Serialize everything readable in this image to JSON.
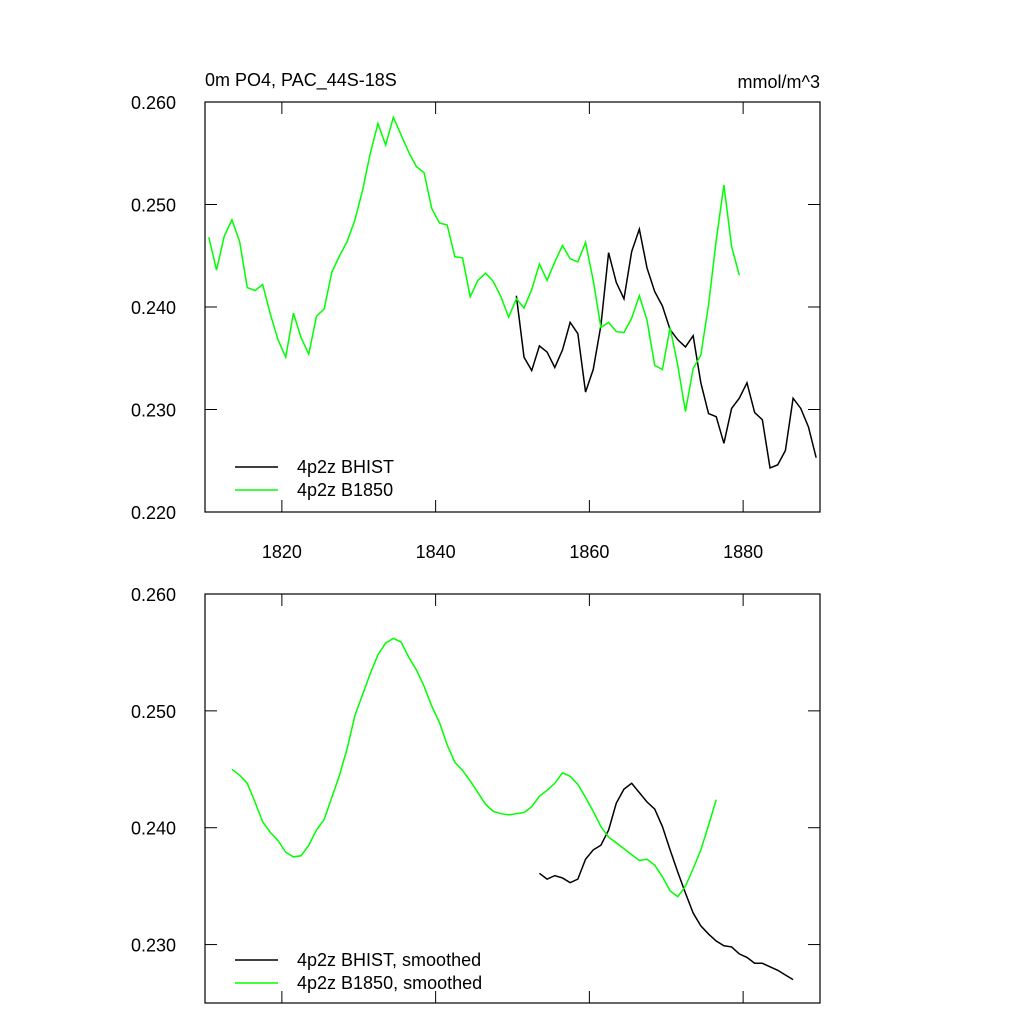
{
  "chart_data": [
    {
      "type": "line",
      "title": "0m PO4, PAC_44S-18S",
      "units": "mmol/m^3",
      "x": [
        1810.5,
        1811.5,
        1812.5,
        1813.5,
        1814.5,
        1815.5,
        1816.5,
        1817.5,
        1818.5,
        1819.5,
        1820.5,
        1821.5,
        1822.5,
        1823.5,
        1824.5,
        1825.5,
        1826.5,
        1827.5,
        1828.5,
        1829.5,
        1830.5,
        1831.5,
        1832.5,
        1833.5,
        1834.5,
        1835.5,
        1836.5,
        1837.5,
        1838.5,
        1839.5,
        1840.5,
        1841.5,
        1842.5,
        1843.5,
        1844.5,
        1845.5,
        1846.5,
        1847.5,
        1848.5,
        1849.5,
        1850.5,
        1851.5,
        1852.5,
        1853.5,
        1854.5,
        1855.5,
        1856.5,
        1857.5,
        1858.5,
        1859.5,
        1860.5,
        1861.5,
        1862.5,
        1863.5,
        1864.5,
        1865.5,
        1866.5,
        1867.5,
        1868.5,
        1869.5,
        1870.5,
        1871.5,
        1872.5,
        1873.5,
        1874.5,
        1875.5,
        1876.5,
        1877.5,
        1878.5,
        1879.5,
        1880.5,
        1881.5,
        1882.5,
        1883.5,
        1884.5,
        1885.5,
        1886.5,
        1887.5,
        1888.5,
        1889.5
      ],
      "series": [
        {
          "name": "4p2z BHIST",
          "color": "#000000",
          "values": [
            null,
            null,
            null,
            null,
            null,
            null,
            null,
            null,
            null,
            null,
            null,
            null,
            null,
            null,
            null,
            null,
            null,
            null,
            null,
            null,
            null,
            null,
            null,
            null,
            null,
            null,
            null,
            null,
            null,
            null,
            null,
            null,
            null,
            null,
            null,
            null,
            null,
            null,
            null,
            null,
            0.2411,
            0.2351,
            0.2338,
            0.2362,
            0.2356,
            0.2341,
            0.2358,
            0.2385,
            0.2374,
            0.2317,
            0.2339,
            0.2382,
            0.2453,
            0.2424,
            0.2408,
            0.2454,
            0.2476,
            0.2438,
            0.2415,
            0.2401,
            0.2378,
            0.2368,
            0.2361,
            0.2372,
            0.2326,
            0.2296,
            0.2293,
            0.2267,
            0.2301,
            0.2311,
            0.2326,
            0.2297,
            0.229,
            0.2243,
            0.2246,
            0.226,
            0.2311,
            0.2301,
            0.2283,
            0.2253
          ]
        },
        {
          "name": "4p2z B1850",
          "color": "#00ff00",
          "values": [
            0.2468,
            0.2436,
            0.2469,
            0.2485,
            0.2464,
            0.2419,
            0.2416,
            0.2422,
            0.2393,
            0.2368,
            0.2351,
            0.2394,
            0.237,
            0.2354,
            0.2391,
            0.2398,
            0.2434,
            0.245,
            0.2464,
            0.2485,
            0.2514,
            0.255,
            0.2579,
            0.2558,
            0.2585,
            0.2568,
            0.2551,
            0.2537,
            0.2531,
            0.2496,
            0.2482,
            0.248,
            0.2449,
            0.2448,
            0.241,
            0.2426,
            0.2433,
            0.2425,
            0.241,
            0.239,
            0.2408,
            0.2399,
            0.2417,
            0.2442,
            0.2426,
            0.2444,
            0.246,
            0.2447,
            0.2444,
            0.2463,
            0.2426,
            0.238,
            0.2385,
            0.2376,
            0.2375,
            0.2389,
            0.2411,
            0.2387,
            0.2343,
            0.2339,
            0.238,
            0.2343,
            0.2298,
            0.234,
            0.2353,
            0.2402,
            0.2465,
            0.2519,
            0.2459,
            0.2431,
            null,
            null,
            null,
            null,
            null,
            null,
            null,
            null,
            null,
            null
          ]
        }
      ],
      "xlim": [
        1810,
        1890
      ],
      "xticks": [
        1820,
        1840,
        1860,
        1880
      ],
      "ylim": [
        0.22,
        0.26
      ],
      "yticks": [
        {
          "value": 0.22,
          "label": "0.220"
        },
        {
          "value": 0.23,
          "label": "0.230"
        },
        {
          "value": 0.24,
          "label": "0.240"
        },
        {
          "value": 0.25,
          "label": "0.250"
        },
        {
          "value": 0.26,
          "label": "0.260"
        }
      ],
      "legend": "lower left"
    },
    {
      "type": "line",
      "x": [
        1813.5,
        1814.5,
        1815.5,
        1816.5,
        1817.5,
        1818.5,
        1819.5,
        1820.5,
        1821.5,
        1822.5,
        1823.5,
        1824.5,
        1825.5,
        1826.5,
        1827.5,
        1828.5,
        1829.5,
        1830.5,
        1831.5,
        1832.5,
        1833.5,
        1834.5,
        1835.5,
        1836.5,
        1837.5,
        1838.5,
        1839.5,
        1840.5,
        1841.5,
        1842.5,
        1843.5,
        1844.5,
        1845.5,
        1846.5,
        1847.5,
        1848.5,
        1849.5,
        1850.5,
        1851.5,
        1852.5,
        1853.5,
        1854.5,
        1855.5,
        1856.5,
        1857.5,
        1858.5,
        1859.5,
        1860.5,
        1861.5,
        1862.5,
        1863.5,
        1864.5,
        1865.5,
        1866.5,
        1867.5,
        1868.5,
        1869.5,
        1870.5,
        1871.5,
        1872.5,
        1873.5,
        1874.5,
        1875.5,
        1876.5,
        1877.5,
        1878.5,
        1879.5,
        1880.5,
        1881.5,
        1882.5,
        1883.5,
        1884.5,
        1885.5,
        1886.5
      ],
      "series": [
        {
          "name": "4p2z BHIST, smoothed",
          "color": "#000000",
          "values": [
            null,
            null,
            null,
            null,
            null,
            null,
            null,
            null,
            null,
            null,
            null,
            null,
            null,
            null,
            null,
            null,
            null,
            null,
            null,
            null,
            null,
            null,
            null,
            null,
            null,
            null,
            null,
            null,
            null,
            null,
            null,
            null,
            null,
            null,
            null,
            null,
            null,
            null,
            null,
            null,
            0.2361,
            0.2356,
            0.2359,
            0.2357,
            0.2353,
            0.2356,
            0.2373,
            0.2381,
            0.2385,
            0.2398,
            0.2421,
            0.2433,
            0.2438,
            0.243,
            0.2422,
            0.2416,
            0.2401,
            0.2381,
            0.2362,
            0.2344,
            0.2327,
            0.2316,
            0.2309,
            0.2303,
            0.2299,
            0.2298,
            0.2292,
            0.2289,
            0.2284,
            0.2284,
            0.2281,
            0.2278,
            0.2274,
            0.227
          ]
        },
        {
          "name": "4p2z B1850, smoothed",
          "color": "#00ff00",
          "values": [
            0.245,
            0.2445,
            0.2438,
            0.2422,
            0.2405,
            0.2396,
            0.2389,
            0.2379,
            0.2375,
            0.2376,
            0.2385,
            0.2398,
            0.2407,
            0.2426,
            0.2445,
            0.2468,
            0.2496,
            0.2514,
            0.2532,
            0.2548,
            0.2558,
            0.2562,
            0.2559,
            0.2546,
            0.2535,
            0.2521,
            0.2504,
            0.249,
            0.2471,
            0.2456,
            0.2449,
            0.244,
            0.243,
            0.242,
            0.2414,
            0.2412,
            0.2411,
            0.2412,
            0.2413,
            0.2418,
            0.2427,
            0.2432,
            0.2438,
            0.2447,
            0.2444,
            0.2437,
            0.2426,
            0.2414,
            0.2401,
            0.2392,
            0.2387,
            0.2382,
            0.2377,
            0.2372,
            0.2373,
            0.2368,
            0.2358,
            0.2346,
            0.2341,
            0.235,
            0.2365,
            0.2381,
            0.2402,
            0.2424,
            null,
            null,
            null,
            null,
            null,
            null,
            null,
            null,
            null,
            null
          ]
        }
      ],
      "xlim": [
        1810,
        1890
      ],
      "xticks": [
        1820,
        1840,
        1860,
        1880
      ],
      "xtick_labels": false,
      "ylim": [
        0.225,
        0.26
      ],
      "yticks": [
        {
          "value": 0.23,
          "label": "0.230"
        },
        {
          "value": 0.24,
          "label": "0.240"
        },
        {
          "value": 0.25,
          "label": "0.250"
        },
        {
          "value": 0.26,
          "label": "0.260"
        }
      ],
      "legend": "lower left"
    }
  ]
}
